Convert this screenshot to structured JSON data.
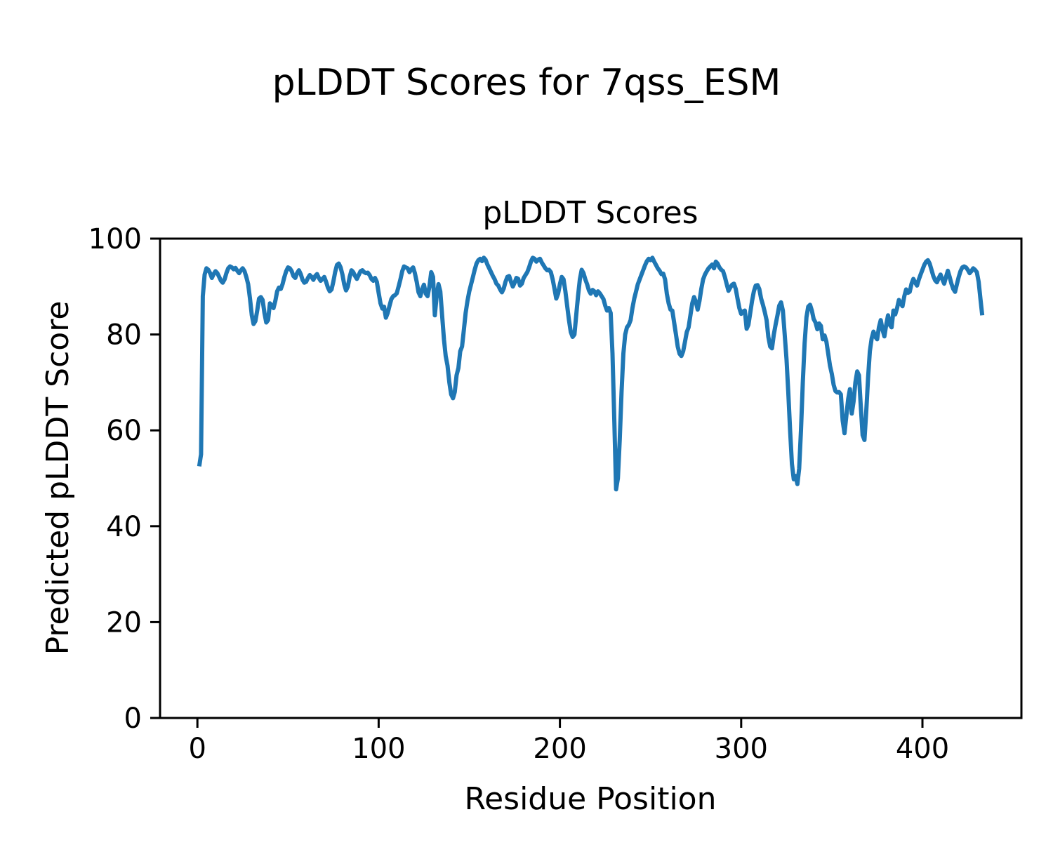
{
  "figure": {
    "suptitle": "pLDDT Scores for 7qss_ESM",
    "background": "#ffffff"
  },
  "chart_data": {
    "type": "line",
    "title": "pLDDT Scores",
    "xlabel": "Residue Position",
    "ylabel": "Predicted pLDDT Score",
    "series_name": "pLDDT",
    "grid": false,
    "legend": "none",
    "line_color": "#1f77b4",
    "line_width": 6,
    "axis_color": "#000000",
    "xlim": [
      -20.6,
      454.6
    ],
    "ylim": [
      0,
      100
    ],
    "xticks": [
      0,
      100,
      200,
      300,
      400
    ],
    "yticks": [
      0,
      20,
      40,
      60,
      80,
      100
    ],
    "x_start": 1,
    "x_step": 1,
    "values": [
      52.5,
      55.0,
      88.0,
      92.5,
      93.8,
      93.5,
      92.8,
      91.8,
      92.6,
      93.2,
      92.8,
      92.0,
      91.2,
      90.8,
      91.5,
      92.8,
      93.8,
      94.2,
      94.0,
      93.6,
      93.9,
      93.3,
      92.8,
      93.4,
      93.8,
      93.2,
      92.0,
      90.5,
      87.5,
      84.0,
      82.2,
      82.8,
      85.0,
      87.5,
      87.8,
      87.2,
      84.5,
      82.5,
      83.0,
      86.5,
      86.0,
      85.5,
      87.0,
      89.0,
      89.8,
      89.5,
      90.5,
      92.0,
      93.2,
      94.0,
      93.8,
      93.2,
      92.2,
      91.8,
      92.8,
      93.4,
      92.6,
      91.4,
      90.8,
      91.0,
      91.8,
      92.4,
      92.0,
      91.4,
      92.2,
      92.6,
      91.8,
      91.2,
      91.6,
      92.0,
      91.0,
      89.8,
      89.0,
      89.4,
      91.0,
      93.0,
      94.5,
      94.8,
      94.0,
      92.5,
      90.5,
      89.2,
      90.0,
      92.0,
      93.4,
      93.0,
      92.2,
      91.6,
      92.4,
      93.2,
      93.4,
      93.0,
      92.8,
      92.9,
      92.4,
      91.6,
      91.2,
      91.8,
      91.0,
      88.7,
      86.5,
      85.4,
      85.8,
      83.5,
      84.5,
      86.0,
      87.4,
      88.0,
      88.2,
      88.6,
      90.0,
      91.5,
      93.2,
      94.2,
      94.0,
      93.8,
      93.0,
      93.6,
      94.0,
      92.8,
      91.0,
      88.8,
      88.0,
      89.5,
      90.4,
      88.5,
      88.0,
      90.0,
      93.0,
      92.0,
      84.0,
      88.0,
      90.5,
      89.0,
      84.0,
      79.0,
      75.5,
      73.5,
      70.0,
      67.5,
      66.7,
      68.0,
      71.5,
      73.0,
      76.5,
      77.5,
      81.0,
      84.5,
      87.0,
      89.0,
      90.5,
      92.0,
      93.5,
      94.8,
      95.5,
      95.8,
      95.3,
      96.0,
      95.6,
      94.6,
      93.8,
      93.0,
      92.2,
      91.5,
      90.6,
      90.2,
      89.4,
      88.8,
      89.6,
      91.0,
      92.0,
      92.2,
      91.0,
      90.0,
      90.8,
      91.8,
      91.6,
      90.2,
      90.6,
      91.8,
      92.4,
      93.0,
      94.0,
      95.2,
      96.0,
      95.8,
      95.2,
      95.6,
      95.8,
      95.0,
      94.4,
      93.8,
      93.4,
      93.5,
      93.0,
      91.5,
      89.5,
      87.5,
      88.5,
      90.5,
      92.0,
      91.5,
      89.0,
      86.0,
      83.0,
      80.5,
      79.5,
      80.0,
      84.0,
      88.0,
      91.5,
      93.5,
      92.8,
      91.5,
      90.5,
      89.2,
      88.5,
      89.3,
      89.0,
      88.2,
      89.0,
      88.6,
      88.0,
      87.4,
      86.0,
      85.0,
      85.5,
      84.5,
      76.0,
      62.0,
      47.7,
      50.0,
      58.0,
      68.0,
      76.0,
      80.0,
      81.5,
      82.0,
      83.0,
      85.5,
      87.5,
      89.0,
      90.5,
      91.5,
      92.5,
      93.5,
      94.5,
      95.3,
      95.8,
      95.5,
      96.0,
      95.2,
      94.5,
      93.8,
      93.3,
      92.6,
      92.7,
      91.5,
      88.5,
      86.5,
      85.2,
      85.0,
      82.5,
      80.0,
      77.5,
      76.0,
      75.5,
      76.5,
      78.5,
      80.5,
      81.5,
      84.0,
      86.5,
      87.8,
      86.8,
      85.2,
      87.0,
      89.5,
      91.5,
      92.5,
      93.2,
      93.8,
      94.2,
      94.6,
      93.8,
      95.2,
      94.8,
      94.0,
      93.5,
      93.2,
      92.0,
      90.5,
      89.1,
      89.8,
      90.4,
      90.6,
      89.5,
      87.5,
      85.5,
      84.3,
      84.8,
      85.0,
      81.2,
      82.0,
      84.5,
      87.0,
      89.0,
      90.2,
      90.3,
      89.5,
      87.5,
      86.2,
      84.7,
      83.0,
      79.5,
      77.5,
      77.1,
      80.0,
      82.1,
      84.0,
      86.0,
      86.7,
      85.0,
      80.0,
      74.8,
      68.0,
      60.0,
      53.0,
      49.8,
      50.5,
      48.8,
      52.0,
      60.0,
      70.0,
      78.2,
      83.6,
      85.8,
      86.2,
      85.0,
      83.2,
      82.5,
      81.1,
      82.3,
      81.8,
      79.0,
      79.8,
      78.5,
      76.0,
      73.5,
      71.8,
      69.5,
      68.2,
      67.9,
      68.0,
      67.5,
      62.0,
      59.4,
      63.0,
      66.5,
      68.6,
      63.5,
      66.0,
      70.0,
      72.3,
      71.5,
      65.0,
      59.0,
      58.0,
      64.0,
      71.0,
      76.5,
      79.2,
      80.6,
      79.5,
      79.0,
      81.5,
      83.0,
      81.0,
      79.6,
      82.0,
      84.0,
      82.0,
      81.5,
      85.0,
      84.2,
      85.5,
      87.2,
      86.5,
      85.9,
      88.0,
      89.4,
      88.7,
      88.9,
      90.6,
      91.6,
      90.8,
      90.2,
      91.5,
      92.5,
      93.5,
      94.5,
      95.2,
      95.5,
      94.8,
      93.5,
      92.2,
      91.3,
      90.9,
      91.8,
      92.5,
      91.5,
      90.6,
      92.0,
      93.3,
      92.0,
      90.6,
      89.5,
      88.9,
      90.5,
      92.0,
      93.2,
      94.0,
      94.2,
      94.0,
      93.5,
      92.8,
      93.2,
      93.8,
      93.5,
      93.0,
      91.0,
      87.5,
      84.0
    ]
  }
}
